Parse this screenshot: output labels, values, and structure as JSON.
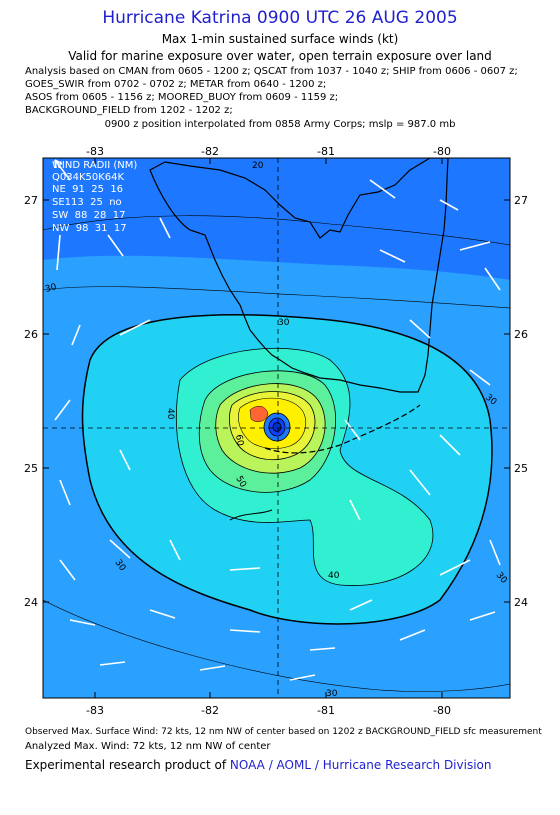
{
  "header": {
    "title": "Hurricane Katrina 0900 UTC 26 AUG 2005",
    "subtitle": "Max 1-min sustained surface winds (kt)",
    "valid_for": "Valid for marine exposure over water, open terrain exposure over land",
    "analysis_lines": [
      "Analysis based on  CMAN from 0605 - 1200 z;  QSCAT from 1037 - 1040 z;  SHIP from 0606 - 0607 z;",
      "GOES_SWIR from 0702 - 0702 z;  METAR from 0640 - 1200 z;",
      "ASOS from 0605 - 1156 z;  MOORED_BUOY from 0609 - 1159 z;",
      "BACKGROUND_FIELD from 1202 - 1202 z;"
    ],
    "position_note": "0900 z position interpolated from 0858 Army Corps; mslp = 987.0 mb"
  },
  "map": {
    "lon_ticks": [
      "-83",
      "-82",
      "-81",
      "-80"
    ],
    "lat_ticks": [
      "27",
      "26",
      "25",
      "24"
    ],
    "wind_radii": {
      "title": "WIND RADII (NM)",
      "header": "Q034K50K64K",
      "rows": [
        "NE  91  25  16",
        "SE113  25  no",
        "SW  88  28  17",
        "NW  98  31  17"
      ]
    },
    "contour_labels": [
      "20",
      "30",
      "30",
      "30",
      "30",
      "30",
      "40",
      "40",
      "50",
      "60",
      "30"
    ],
    "colors": {
      "ocean_dark": "#1e78ff",
      "band_30": "#2aa0ff",
      "band_40": "#21d1f4",
      "band_50": "#31efd1",
      "band_60": "#5cef9c",
      "band_70": "#b9f55a",
      "core": "#fff000",
      "peak": "#ff6633",
      "eye": "#1040ff"
    }
  },
  "footer": {
    "observed": "Observed Max. Surface Wind: 72 kts, 12 nm NW of center based on 1202 z BACKGROUND_FIELD sfc measurement",
    "analyzed": "Analyzed Max. Wind: 72 kts, 12 nm NW of center",
    "credit_prefix": "Experimental research product of ",
    "credit_org": "NOAA / AOML / Hurricane Research Division"
  }
}
